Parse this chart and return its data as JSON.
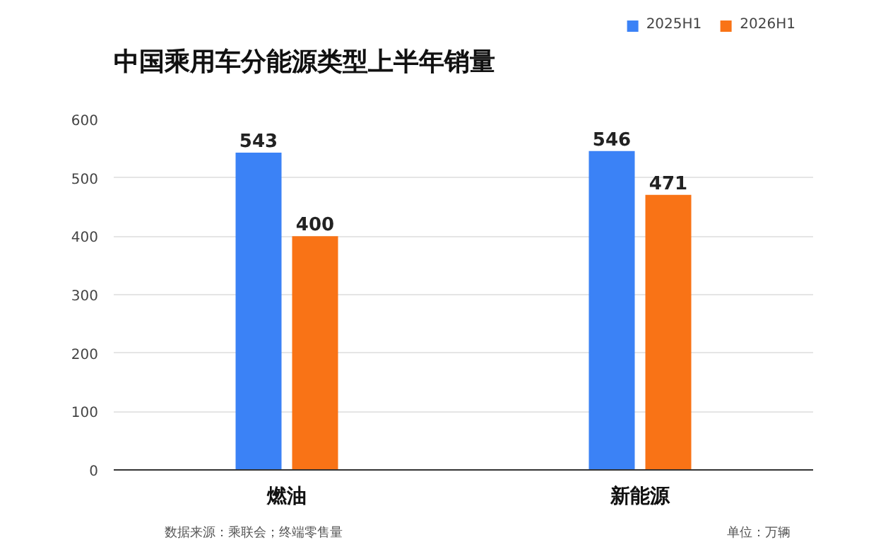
{
  "chart_data": {
    "type": "bar",
    "title": "中国乘用车分能源类型上半年销量",
    "categories": [
      "燃油",
      "新能源"
    ],
    "series": [
      {
        "name": "2025H1",
        "color": "#3b82f6",
        "values": [
          543,
          546
        ]
      },
      {
        "name": "2026H1",
        "color": "#f97316",
        "values": [
          400,
          471
        ]
      }
    ],
    "ylim": [
      0,
      600
    ],
    "yticks": [
      0,
      100,
      200,
      300,
      400,
      500,
      600
    ],
    "grid": "y",
    "legend": "top right",
    "data_labels": true,
    "annotations": [
      "数据来源：乘联会；终端零售量",
      "单位：万辆"
    ]
  }
}
